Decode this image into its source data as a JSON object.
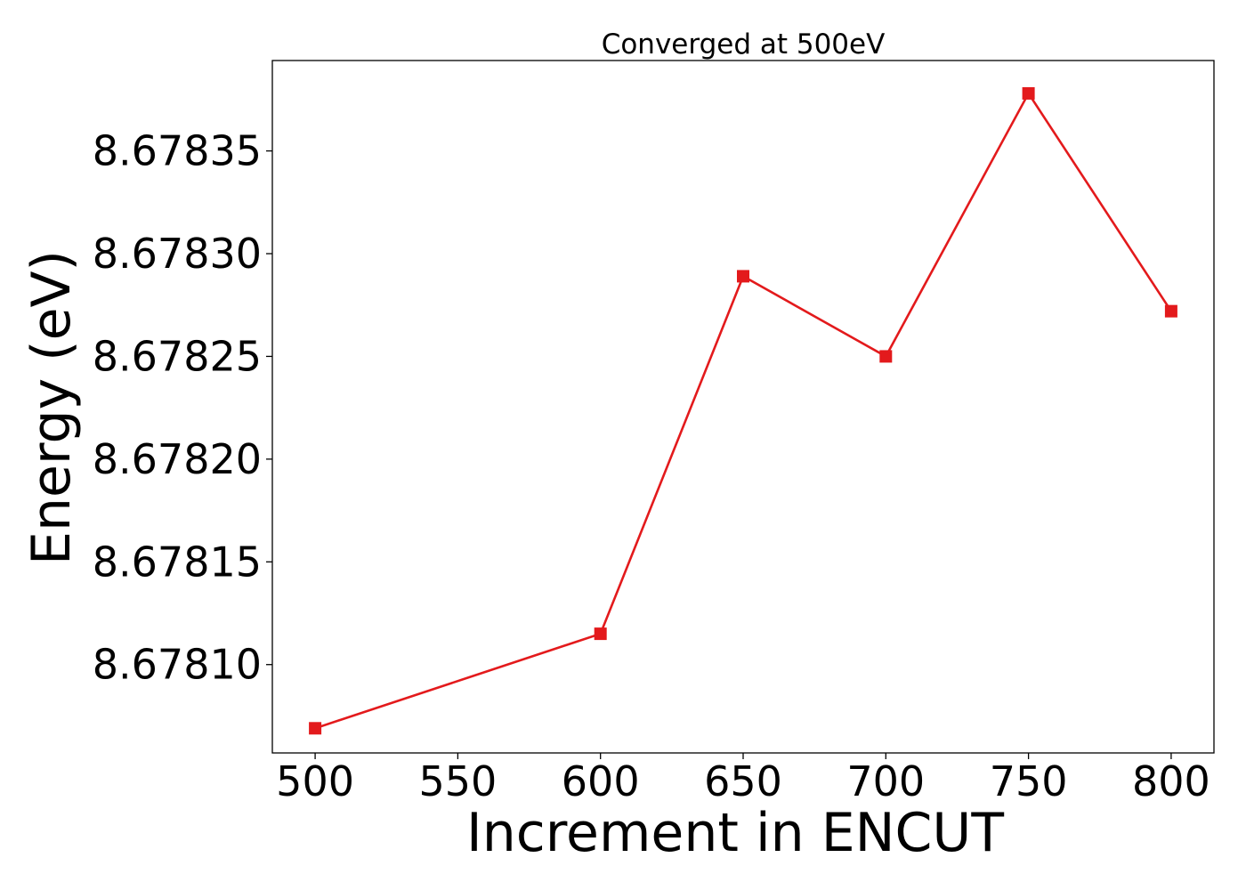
{
  "chart_data": {
    "type": "line",
    "title": "Converged at 500eV",
    "xlabel": "Increment in ENCUT",
    "ylabel": "Energy (eV)",
    "x": [
      500,
      600,
      650,
      700,
      750,
      800
    ],
    "series": [
      {
        "values": [
          8.678069,
          8.678115,
          8.678289,
          8.67825,
          8.678378,
          8.678272
        ],
        "color": "#e31a1c",
        "marker": "square"
      }
    ],
    "xlim": [
      485,
      815
    ],
    "ylim": [
      8.678057,
      8.678394
    ],
    "xticks": [
      500,
      550,
      600,
      650,
      700,
      750,
      800
    ],
    "xtick_labels": [
      "500",
      "550",
      "600",
      "650",
      "700",
      "750",
      "800"
    ],
    "yticks": [
      8.6781,
      8.67815,
      8.6782,
      8.67825,
      8.6783,
      8.67835
    ],
    "ytick_labels": [
      "8.67810",
      "8.67815",
      "8.67820",
      "8.67825",
      "8.67830",
      "8.67835"
    ],
    "grid": false,
    "legend": "none"
  }
}
